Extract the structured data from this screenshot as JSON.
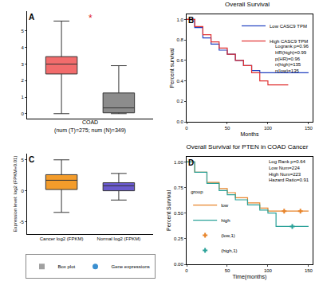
{
  "chart_data": [
    {
      "panel": "A",
      "type": "box",
      "title": "COAD",
      "subtitle": "(num (T)=275; num (N)=349)",
      "annotations": [
        "*"
      ],
      "categories": [
        null,
        null
      ],
      "series": [
        {
          "color": "#f26c6c",
          "q1": 2.4,
          "median": 3.0,
          "q3": 3.45,
          "lowerfence": 0.0,
          "upperfence": 5.6
        },
        {
          "color": "#8c8c8c",
          "q1": 0.05,
          "median": 0.35,
          "q3": 1.25,
          "lowerfence": 0.0,
          "upperfence": 2.9
        }
      ],
      "ylim": [
        -0.3,
        6.2
      ],
      "yticks": [
        0,
        1,
        2,
        3,
        4,
        5
      ],
      "tick_labels": "y",
      "grid": false
    },
    {
      "panel": "B",
      "type": "line",
      "title": "Overall Survival",
      "x_label": "Months",
      "y_label": "Percent survival",
      "annotations": [
        "Logrank p=0.96",
        "HR(high)=0.99",
        "p(HR)=0.96",
        "n(high)=135",
        "n(low)=135"
      ],
      "series": [
        {
          "name": "Low CASC9 TPM",
          "color": "#2040c0",
          "line_style": "solid",
          "x": [
            0,
            10,
            20,
            30,
            40,
            50,
            60,
            70,
            80,
            90,
            150
          ],
          "values": [
            1,
            0.92,
            0.82,
            0.76,
            0.7,
            0.66,
            0.6,
            0.55,
            0.5,
            0.48,
            0.48
          ]
        },
        {
          "name": "High CASC9 TPM",
          "color": "#e03030",
          "line_style": "solid",
          "x": [
            0,
            10,
            20,
            30,
            40,
            50,
            60,
            70,
            80,
            90,
            100,
            125
          ],
          "values": [
            1,
            0.93,
            0.85,
            0.78,
            0.72,
            0.66,
            0.6,
            0.55,
            0.48,
            0.4,
            0.36,
            0.36
          ]
        }
      ],
      "xlim": [
        0,
        155
      ],
      "xticks": [
        0,
        50,
        100,
        150
      ],
      "ylim": [
        0,
        1.05
      ],
      "yticks": [
        {
          "value": 0,
          "label": "0.0"
        },
        {
          "value": 0.2,
          "label": "0.2"
        },
        {
          "value": 0.4,
          "label": "0.4"
        },
        {
          "value": 0.6,
          "label": "0.6"
        },
        {
          "value": 0.8,
          "label": "0.8"
        },
        {
          "value": 1,
          "label": "1.0"
        }
      ],
      "legend": "top right",
      "grid": false
    },
    {
      "panel": "C",
      "type": "box",
      "y_label": "Expression level: log2 (FPKM+0.01)",
      "categories": [
        "Cancer log2 (FPKM)",
        "Normal log2 (FPKM)"
      ],
      "series": [
        {
          "color": "#f39c2b",
          "q1": 0.2,
          "median": 1.7,
          "q3": 2.6,
          "lowerfence": -3.5,
          "upperfence": 5.0
        },
        {
          "color": "#6a5acd",
          "q1": 0.0,
          "median": 0.8,
          "q3": 1.3,
          "lowerfence": -1.5,
          "upperfence": 2.8
        }
      ],
      "legend_entries": [
        {
          "name": "Box plot",
          "color": "#a0a0a0",
          "marker": "square"
        },
        {
          "name": "Gene expressions",
          "color": "#3a8fd0",
          "marker": "circle"
        }
      ],
      "ylim": [
        -7,
        6
      ],
      "yticks": [
        -5,
        0,
        5
      ],
      "legend": "bottom",
      "grid": false
    },
    {
      "panel": "D",
      "type": "line",
      "title": "Overall Survival for PTEN in COAD Cancer",
      "x_label": "Time(months)",
      "y_label": "Percent Survival",
      "annotations": [
        "Log Rank p=0.64",
        "Low Num=224",
        "High Num=223",
        "Hazard Ratio=0.91"
      ],
      "legend_title": "group",
      "series": [
        {
          "name": "low",
          "color": "#e8842a",
          "line_style": "solid",
          "x": [
            0,
            10,
            25,
            40,
            50,
            60,
            75,
            90,
            100,
            150
          ],
          "values": [
            1,
            0.9,
            0.8,
            0.74,
            0.7,
            0.65,
            0.6,
            0.55,
            0.52,
            0.52
          ]
        },
        {
          "name": "high",
          "color": "#2aa198",
          "line_style": "solid",
          "x": [
            0,
            10,
            25,
            40,
            50,
            60,
            75,
            90,
            100,
            110,
            150
          ],
          "values": [
            1,
            0.9,
            0.79,
            0.72,
            0.68,
            0.63,
            0.58,
            0.53,
            0.5,
            0.37,
            0.37
          ]
        },
        {
          "name": "(low,1)",
          "color": "#e8842a",
          "marker": "cross",
          "x": [
            120,
            140
          ],
          "values": [
            0.52,
            0.52
          ]
        },
        {
          "name": "(high,1)",
          "color": "#2aa198",
          "marker": "cross",
          "x": [
            130
          ],
          "values": [
            0.37
          ]
        }
      ],
      "xlim": [
        0,
        155
      ],
      "xticks": [
        0,
        50,
        100,
        150
      ],
      "ylim": [
        0,
        1.05
      ],
      "yticks": [
        {
          "value": 0,
          "label": "0.00"
        },
        {
          "value": 0.25,
          "label": "0.25"
        },
        {
          "value": 0.5,
          "label": "0.50"
        },
        {
          "value": 0.75,
          "label": "0.75"
        },
        {
          "value": 1,
          "label": "1.00"
        }
      ],
      "legend": "bottom left",
      "grid": false
    }
  ]
}
